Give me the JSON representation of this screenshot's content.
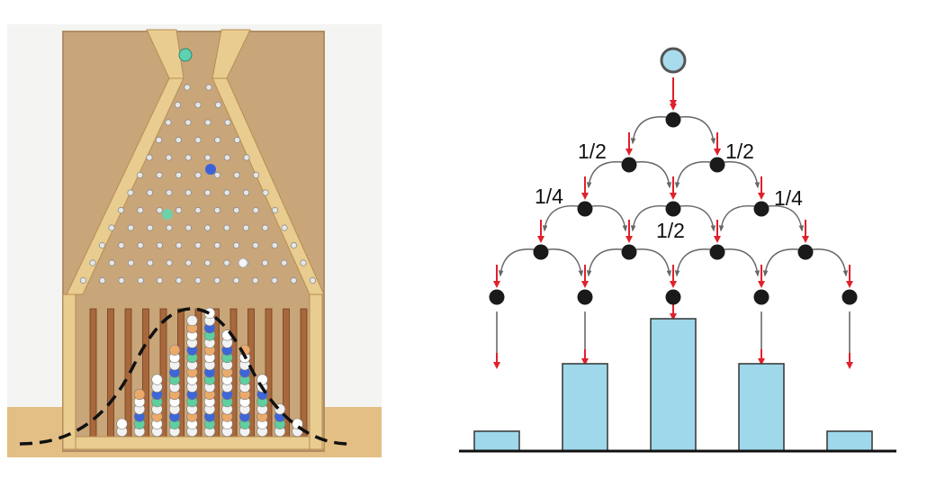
{
  "photo": {
    "description_icon": "galton-board-photo",
    "board_color": "#d2b48c",
    "frame_color": "#e8c98a",
    "curve": "dashed-bell-curve"
  },
  "diagram": {
    "node_color": "#1a1a1a",
    "arrow_color": "#e0202a",
    "ball_color": "#a8dcec",
    "bar_color": "#9fd8ea",
    "labels": {
      "row1_left": "1/2",
      "row1_right": "1/2",
      "row2_left": "1/4",
      "row2_center": "1/2",
      "row2_right": "1/4"
    },
    "bins": [
      {
        "bin": 1,
        "relative_height": 0.15
      },
      {
        "bin": 2,
        "relative_height": 0.66
      },
      {
        "bin": 3,
        "relative_height": 1.0
      },
      {
        "bin": 4,
        "relative_height": 0.66
      },
      {
        "bin": 5,
        "relative_height": 0.15
      }
    ]
  }
}
